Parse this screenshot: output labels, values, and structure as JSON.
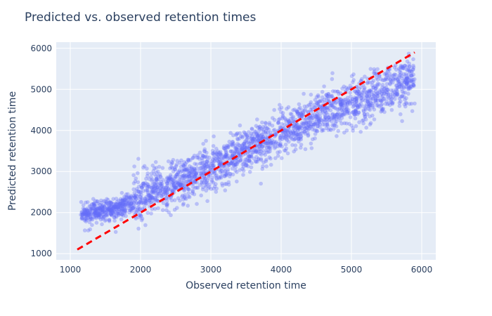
{
  "chart_data": {
    "type": "scatter",
    "title": "Predicted vs. observed retention times",
    "xlabel": "Observed retention time",
    "ylabel": "Predicted retention time",
    "xlim": [
      800,
      6200
    ],
    "ylim": [
      850,
      6150
    ],
    "xticks": [
      1000,
      2000,
      3000,
      4000,
      5000,
      6000
    ],
    "yticks": [
      1000,
      2000,
      3000,
      4000,
      5000,
      6000
    ],
    "grid": true,
    "legend": "none",
    "colors": {
      "plot_bg": "#E5ECF6",
      "grid": "#ffffff",
      "points": "#636EFA",
      "reference_line": "#ff0000",
      "text": "#2a3f5f"
    },
    "series": [
      {
        "kind": "points",
        "point_count": 2400,
        "pattern": {
          "x_range": [
            1100,
            5900
          ],
          "clusters": [
            {
              "x_range": [
                1150,
                1900
              ],
              "y_center": [
                1950,
                2200
              ],
              "y_spread": 140
            },
            {
              "x_range": [
                1900,
                3300
              ],
              "y_center": [
                2300,
                3300
              ],
              "y_spread": 280
            },
            {
              "x_range": [
                3300,
                4500
              ],
              "y_center": [
                3400,
                4300
              ],
              "y_spread": 260
            },
            {
              "x_range": [
                4500,
                5900
              ],
              "y_center": [
                4400,
                5200
              ],
              "y_spread": 300
            }
          ]
        }
      },
      {
        "kind": "reference_line",
        "x": [
          1100,
          5900
        ],
        "y": [
          1100,
          5900
        ]
      }
    ]
  }
}
